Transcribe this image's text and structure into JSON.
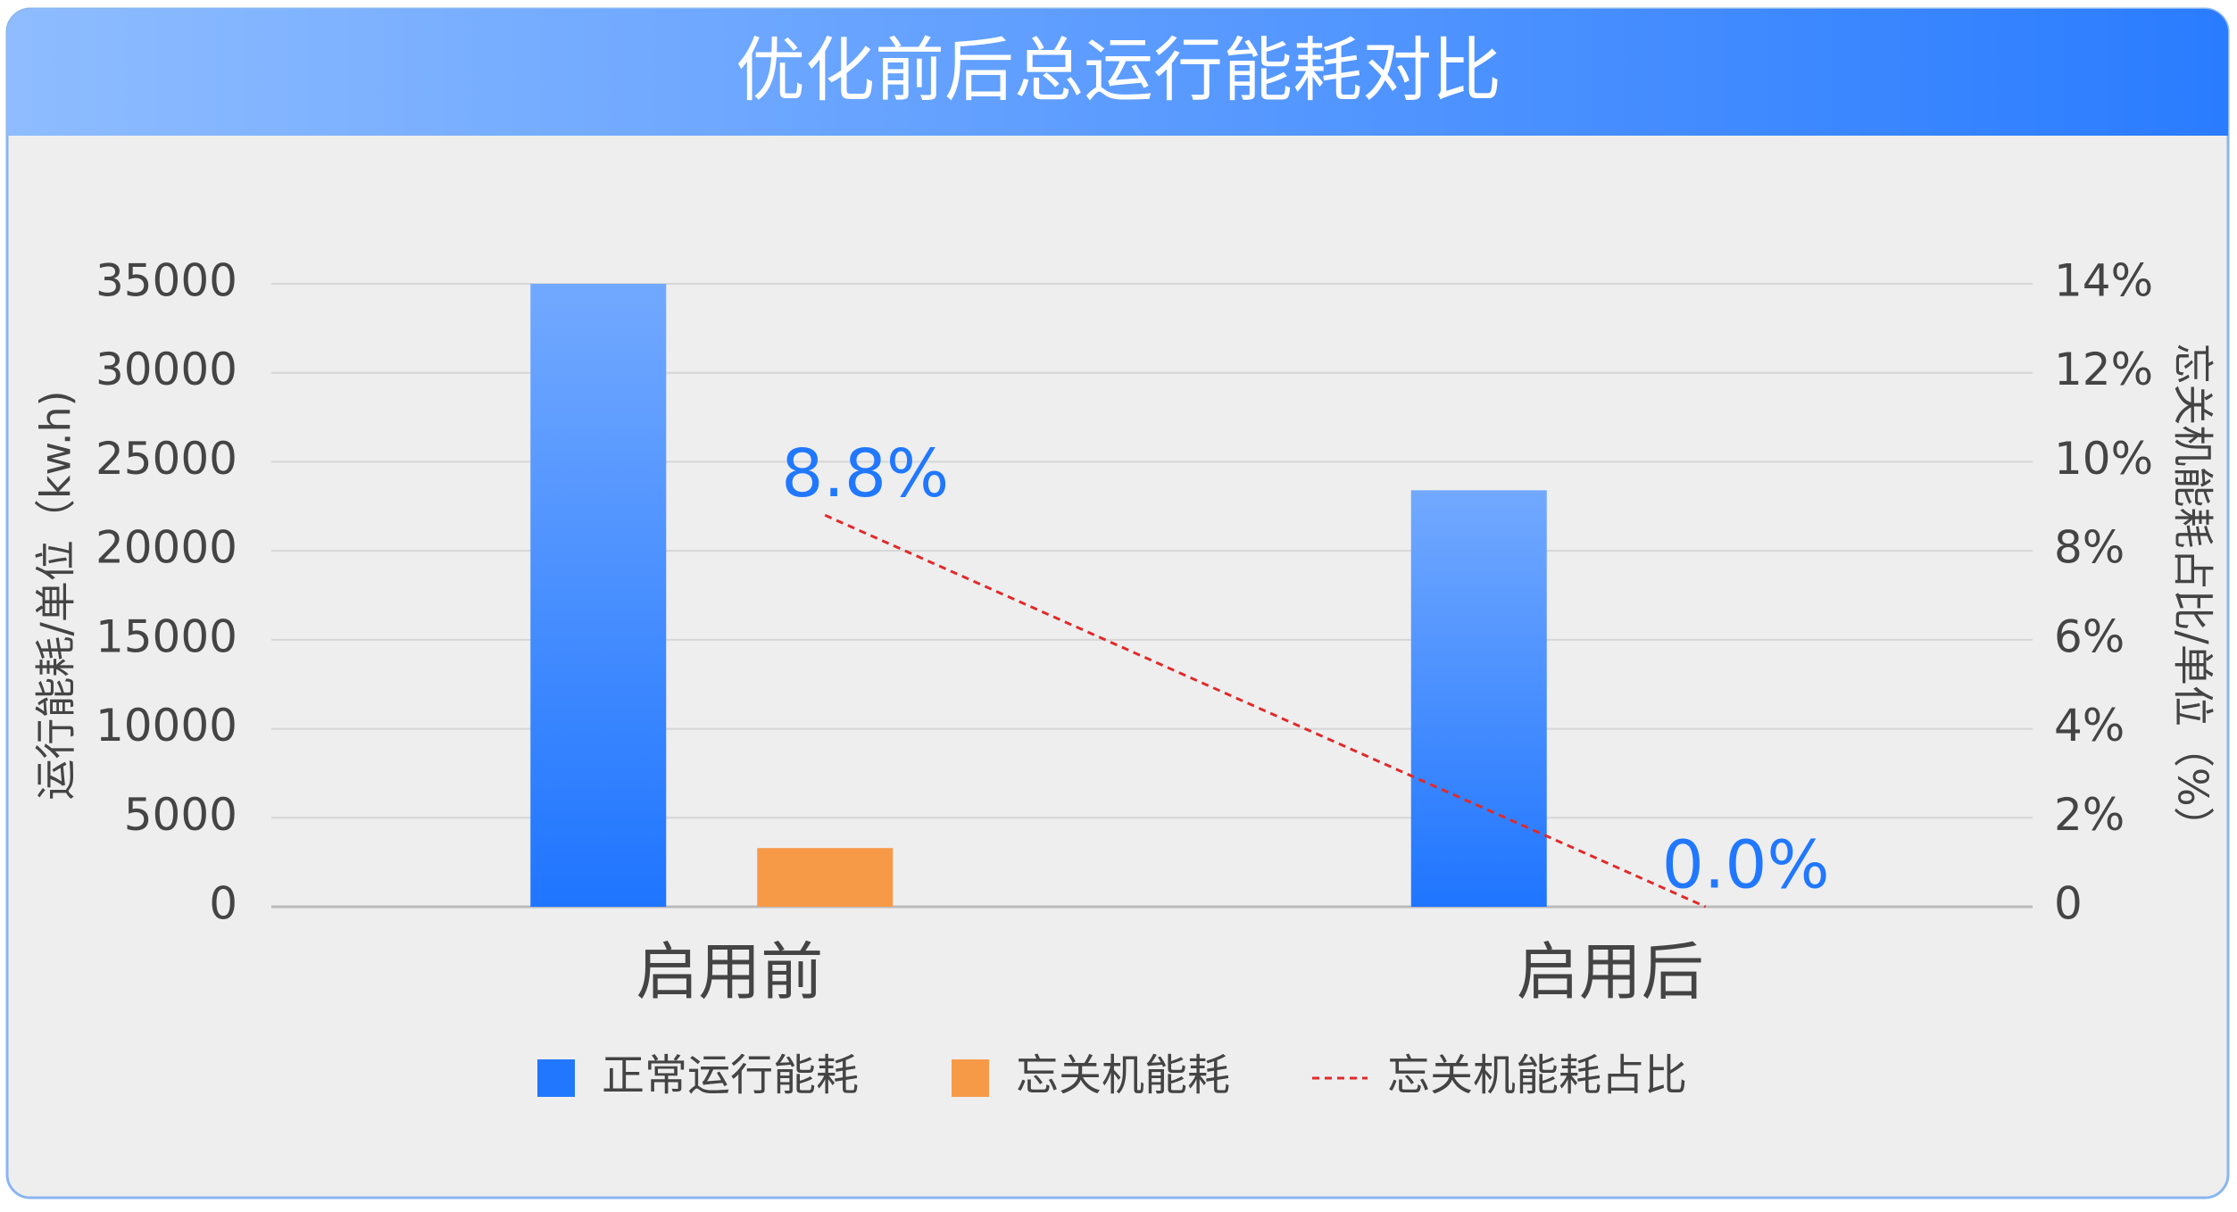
{
  "chart_data": {
    "type": "bar",
    "title": "优化前后总运行能耗对比",
    "categories": [
      "启用前",
      "启用后"
    ],
    "series": [
      {
        "name": "正常运行能耗",
        "type": "bar",
        "color": "#2178ff",
        "values": [
          35000,
          23400
        ]
      },
      {
        "name": "忘关机能耗",
        "type": "bar",
        "color": "#f79a48",
        "values": [
          3300,
          0
        ]
      },
      {
        "name": "忘关机能耗占比",
        "type": "line",
        "axis": "y2",
        "color": "#e02a2a",
        "values": [
          8.8,
          0.0
        ],
        "value_labels": [
          "8.8%",
          "0.0%"
        ]
      }
    ],
    "ylabel": "运行能耗/单位（kw.h)",
    "y2label": "忘关机能耗占比/单位（%）",
    "ylim": [
      0,
      35000
    ],
    "yticks": [
      0,
      5000,
      10000,
      15000,
      20000,
      25000,
      30000,
      35000
    ],
    "y2lim": [
      0,
      14
    ],
    "y2ticks": [
      0,
      {
        "value": 2,
        "label": "2%"
      },
      {
        "value": 4,
        "label": "4%"
      },
      {
        "value": 6,
        "label": "6%"
      },
      {
        "value": 8,
        "label": "8%"
      },
      {
        "value": 10,
        "label": "10%"
      },
      {
        "value": 12,
        "label": "12%"
      },
      {
        "value": 14,
        "label": "14%"
      }
    ],
    "grid": true,
    "legend": "bottom"
  }
}
